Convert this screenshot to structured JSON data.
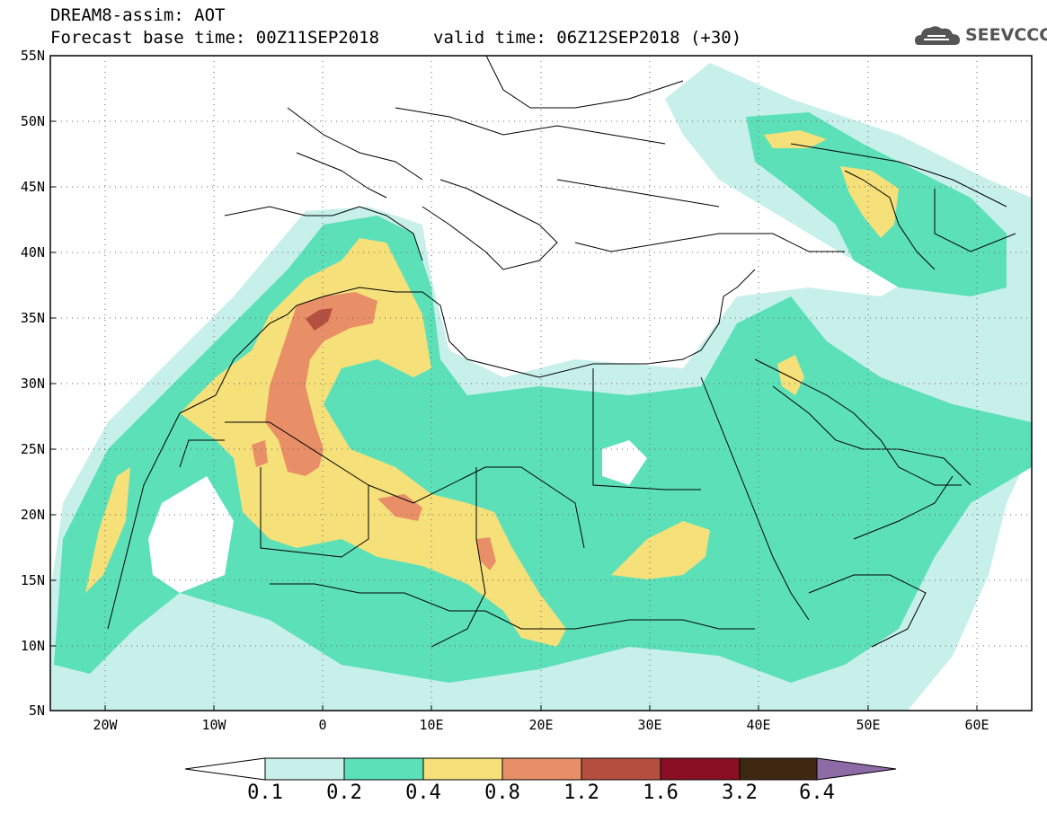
{
  "header": {
    "title": "DREAM8-assim: AOT",
    "base_time": "Forecast base time: 00Z11SEP2018",
    "valid_time": "valid time: 06Z12SEP2018 (+30)",
    "logo_text": "SEEVCCC"
  },
  "map": {
    "region": "North Africa, Middle East and Southern Europe",
    "lon_range": [
      -25,
      65
    ],
    "lat_range": [
      5,
      55
    ],
    "lat_labels": [
      "55N",
      "50N",
      "45N",
      "40N",
      "35N",
      "30N",
      "25N",
      "20N",
      "15N",
      "10N",
      "5N"
    ],
    "lon_labels": [
      "20W",
      "10W",
      "0",
      "10E",
      "20E",
      "30E",
      "40E",
      "50E",
      "60E"
    ]
  },
  "colorbar": {
    "labels": [
      "0.1",
      "0.2",
      "0.4",
      "0.8",
      "1.2",
      "1.6",
      "3.2",
      "6.4"
    ],
    "colors": [
      "#ffffff",
      "#c8f0ea",
      "#5ce0b8",
      "#f5e07a",
      "#e88f68",
      "#b55040",
      "#8a0f25",
      "#3e2812",
      "#8e6aa6"
    ]
  },
  "palette": {
    "c01": "#c8f0ea",
    "c02": "#5ce0b8",
    "c04": "#f5e07a",
    "c08": "#e88f68",
    "c12": "#b55040"
  }
}
